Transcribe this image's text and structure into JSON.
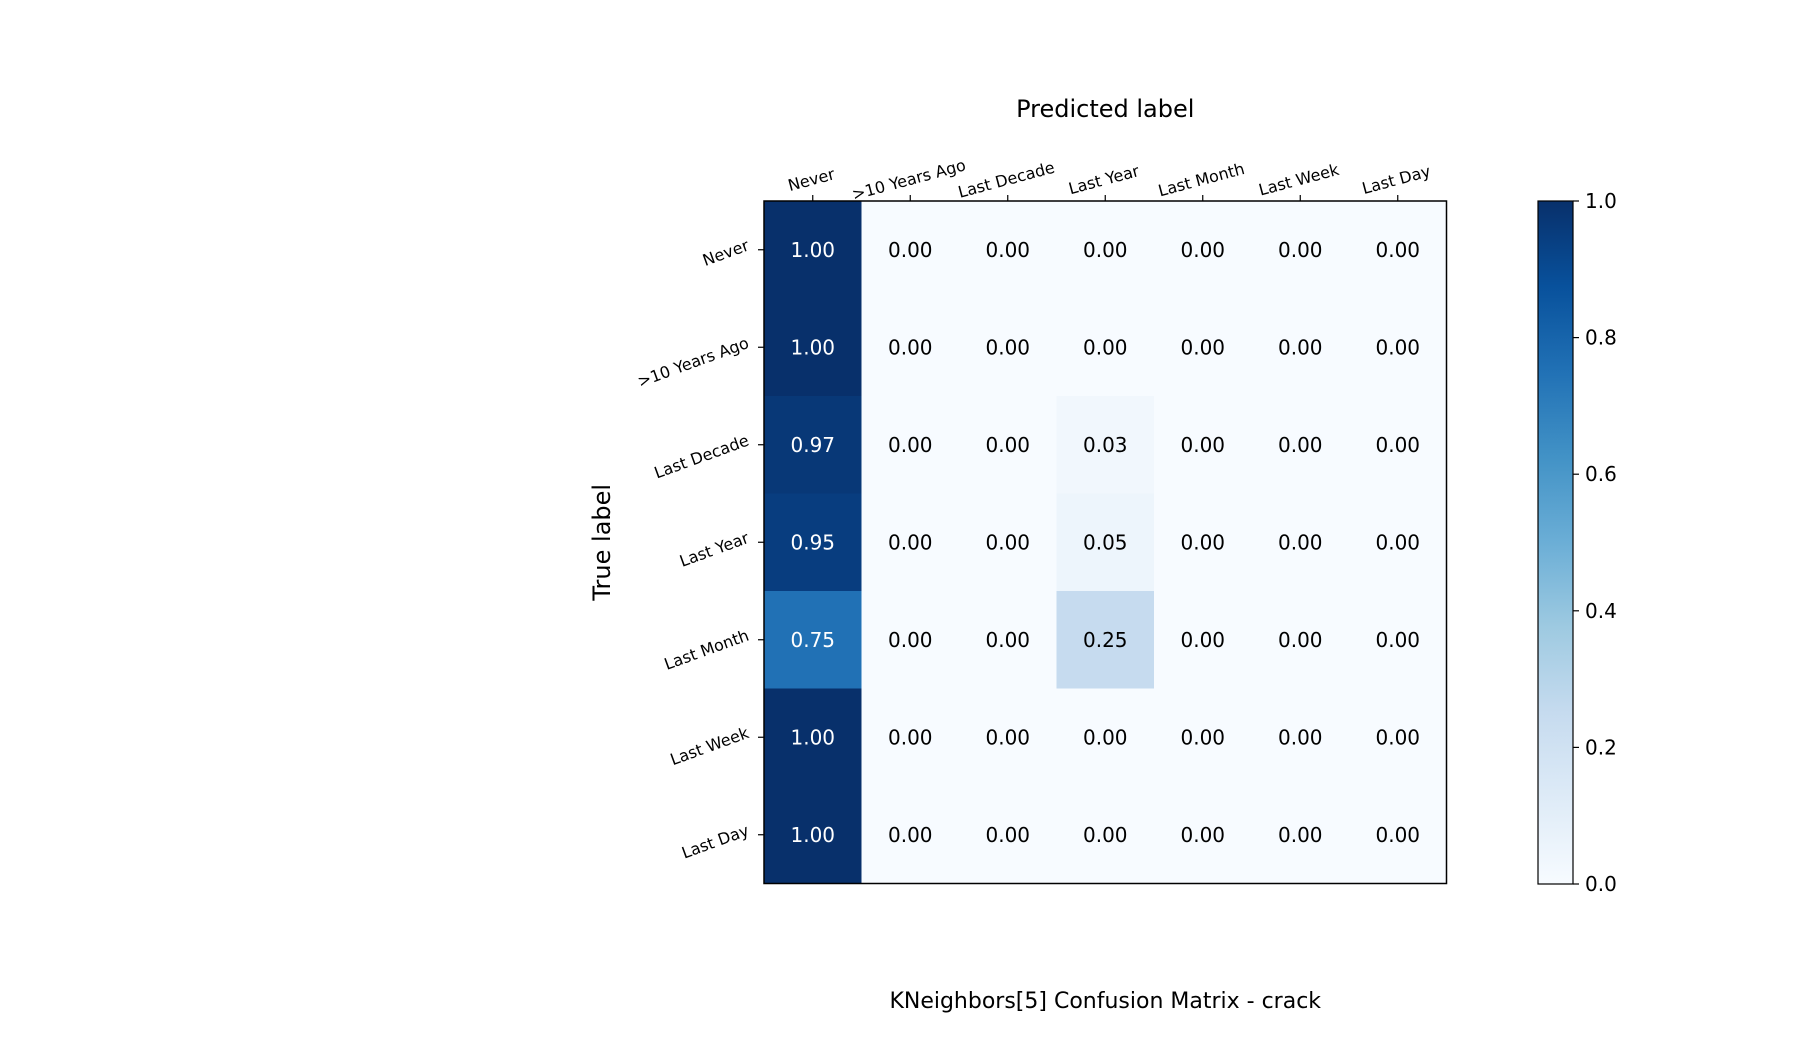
{
  "chart_data": {
    "type": "heatmap",
    "title": "KNeighbors[5]  Confusion Matrix - crack",
    "xlabel": "Predicted label",
    "ylabel": "True label",
    "x_categories": [
      "Never",
      ">10 Years Ago",
      "Last Decade",
      "Last Year",
      "Last Month",
      "Last Week",
      "Last Day"
    ],
    "y_categories": [
      "Never",
      ">10 Years Ago",
      "Last Decade",
      "Last Year",
      "Last Month",
      "Last Week",
      "Last Day"
    ],
    "values": [
      [
        1.0,
        0.0,
        0.0,
        0.0,
        0.0,
        0.0,
        0.0
      ],
      [
        1.0,
        0.0,
        0.0,
        0.0,
        0.0,
        0.0,
        0.0
      ],
      [
        0.97,
        0.0,
        0.0,
        0.03,
        0.0,
        0.0,
        0.0
      ],
      [
        0.95,
        0.0,
        0.0,
        0.05,
        0.0,
        0.0,
        0.0
      ],
      [
        0.75,
        0.0,
        0.0,
        0.25,
        0.0,
        0.0,
        0.0
      ],
      [
        1.0,
        0.0,
        0.0,
        0.0,
        0.0,
        0.0,
        0.0
      ],
      [
        1.0,
        0.0,
        0.0,
        0.0,
        0.0,
        0.0,
        0.0
      ]
    ],
    "value_format": "0.00",
    "colormap": "Blues",
    "colorbar": {
      "range": [
        0.0,
        1.0
      ],
      "ticks": [
        0.0,
        0.2,
        0.4,
        0.6,
        0.8,
        1.0
      ],
      "tick_labels": [
        "0.0",
        "0.2",
        "0.4",
        "0.6",
        "0.8",
        "1.0"
      ]
    },
    "grid": false,
    "x_axis_position": "top"
  }
}
